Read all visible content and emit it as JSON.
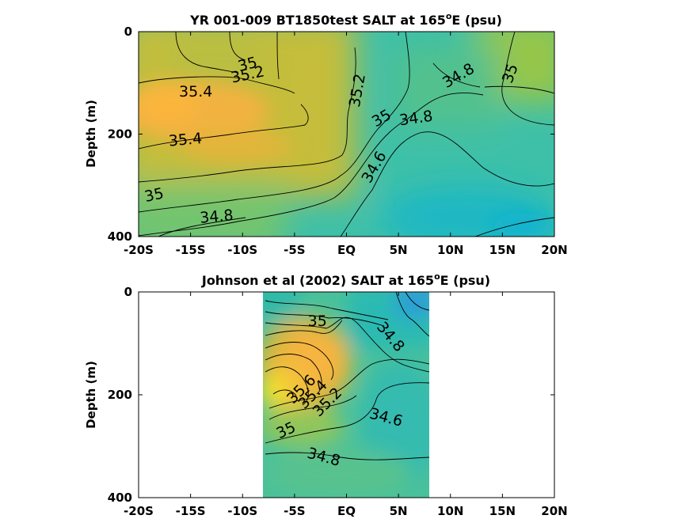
{
  "chart_data": [
    {
      "type": "heatmap",
      "title": "YR 001-009 BT1850test SALT at 165",
      "title_sup": "o",
      "title_suffix": "E (psu)",
      "ylabel": "Depth (m)",
      "xlim": [
        -20,
        20
      ],
      "ylim": [
        0,
        400
      ],
      "x_ticks": [
        -20,
        -15,
        -10,
        -5,
        0,
        5,
        10,
        15,
        20
      ],
      "x_tick_labels": [
        "-20S",
        "-15S",
        "-10S",
        "-5S",
        "EQ",
        "5N",
        "10N",
        "15N",
        "20N"
      ],
      "y_ticks": [
        0,
        200,
        400
      ],
      "y_tick_labels": [
        "0",
        "200",
        "400"
      ],
      "contour_levels": [
        34.6,
        34.8,
        35,
        35.2,
        35.4
      ],
      "contour_labels": [
        {
          "text": "35",
          "x": -9.5,
          "y": 65,
          "rotate": -15
        },
        {
          "text": "35.2",
          "x": -9.5,
          "y": 85,
          "rotate": -12
        },
        {
          "text": "35.4",
          "x": -14.5,
          "y": 118,
          "rotate": 0
        },
        {
          "text": "35.4",
          "x": -15.5,
          "y": 212,
          "rotate": -5
        },
        {
          "text": "35",
          "x": -18.5,
          "y": 320,
          "rotate": -12
        },
        {
          "text": "34.8",
          "x": -12.5,
          "y": 362,
          "rotate": -5
        },
        {
          "text": "35.2",
          "x": 1.1,
          "y": 115,
          "rotate": -80
        },
        {
          "text": "35",
          "x": 3.4,
          "y": 170,
          "rotate": -30
        },
        {
          "text": "34.8",
          "x": 6.7,
          "y": 170,
          "rotate": -8
        },
        {
          "text": "34.8",
          "x": 10.8,
          "y": 87,
          "rotate": -30
        },
        {
          "text": "35",
          "x": 15.8,
          "y": 82,
          "rotate": -70
        },
        {
          "text": "34.6",
          "x": 2.7,
          "y": 265,
          "rotate": -60
        }
      ]
    },
    {
      "type": "heatmap",
      "title": "Johnson et al (2002) SALT at 165",
      "title_sup": "o",
      "title_suffix": "E (psu)",
      "ylabel": "Depth (m)",
      "xlim": [
        -20,
        20
      ],
      "ylim": [
        0,
        400
      ],
      "data_x_range": [
        -8,
        8
      ],
      "x_ticks": [
        -20,
        -15,
        -10,
        -5,
        0,
        5,
        10,
        15,
        20
      ],
      "x_tick_labels": [
        "-20S",
        "-15S",
        "-10S",
        "-5S",
        "EQ",
        "5N",
        "10N",
        "15N",
        "20N"
      ],
      "y_ticks": [
        0,
        200,
        400
      ],
      "y_tick_labels": [
        "0",
        "200",
        "400"
      ],
      "contour_levels": [
        34.6,
        34.8,
        35,
        35.2,
        35.4,
        35.6
      ],
      "contour_labels": [
        {
          "text": "35",
          "x": -2.8,
          "y": 58,
          "rotate": 0
        },
        {
          "text": "34.8",
          "x": 4.2,
          "y": 88,
          "rotate": 50
        },
        {
          "text": "35.6",
          "x": -4.3,
          "y": 190,
          "rotate": -45
        },
        {
          "text": "35.4",
          "x": -3.2,
          "y": 200,
          "rotate": -45
        },
        {
          "text": "35.2",
          "x": -1.8,
          "y": 215,
          "rotate": -45
        },
        {
          "text": "34.6",
          "x": 3.8,
          "y": 245,
          "rotate": 15
        },
        {
          "text": "35",
          "x": -5.8,
          "y": 270,
          "rotate": -25
        },
        {
          "text": "34.8",
          "x": -2.2,
          "y": 322,
          "rotate": 15
        }
      ]
    }
  ]
}
